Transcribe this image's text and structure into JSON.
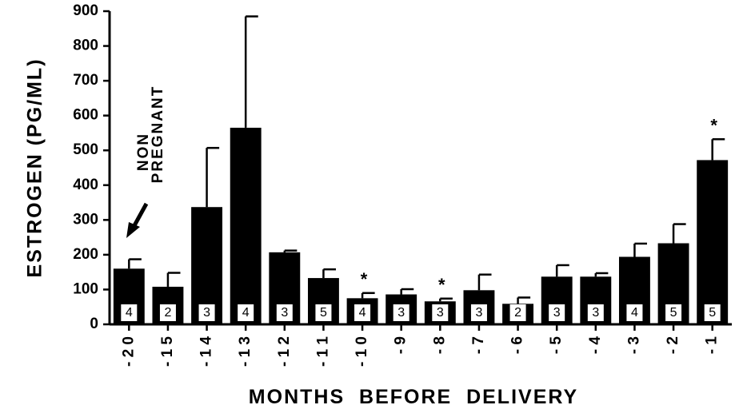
{
  "chart_data": {
    "type": "bar",
    "xlabel": "MONTHS  BEFORE  DELIVERY",
    "ylabel": "ESTROGEN  (PG/ML)",
    "ylim": [
      0,
      900
    ],
    "yticks": [
      "0",
      "100",
      "200",
      "300",
      "400",
      "500",
      "600",
      "700",
      "800",
      "900"
    ],
    "categories": [
      "- 2 0",
      "- 1 5",
      "- 1 4",
      "- 1 3",
      "- 1 2",
      "- 1 1",
      "- 1 0",
      "- 9",
      "- 8",
      "- 7",
      "- 6",
      "- 5",
      "- 4",
      "- 3",
      "- 2",
      "- 1"
    ],
    "values": [
      160,
      108,
      337,
      565,
      207,
      133,
      75,
      86,
      66,
      98,
      59,
      137,
      137,
      194,
      233,
      472
    ],
    "errors": [
      27,
      40,
      170,
      320,
      5,
      25,
      15,
      15,
      8,
      45,
      18,
      33,
      10,
      38,
      55,
      60
    ],
    "n": [
      "4",
      "2",
      "3",
      "4",
      "3",
      "5",
      "4",
      "3",
      "3",
      "3",
      "2",
      "3",
      "3",
      "4",
      "5",
      "5"
    ],
    "significant": [
      false,
      false,
      false,
      false,
      false,
      false,
      true,
      false,
      true,
      false,
      false,
      false,
      false,
      false,
      false,
      true
    ],
    "star_symbol": "*",
    "annotation": {
      "line1": "NON",
      "line2": "PREGNANT"
    },
    "grid": false,
    "legend": "none"
  }
}
